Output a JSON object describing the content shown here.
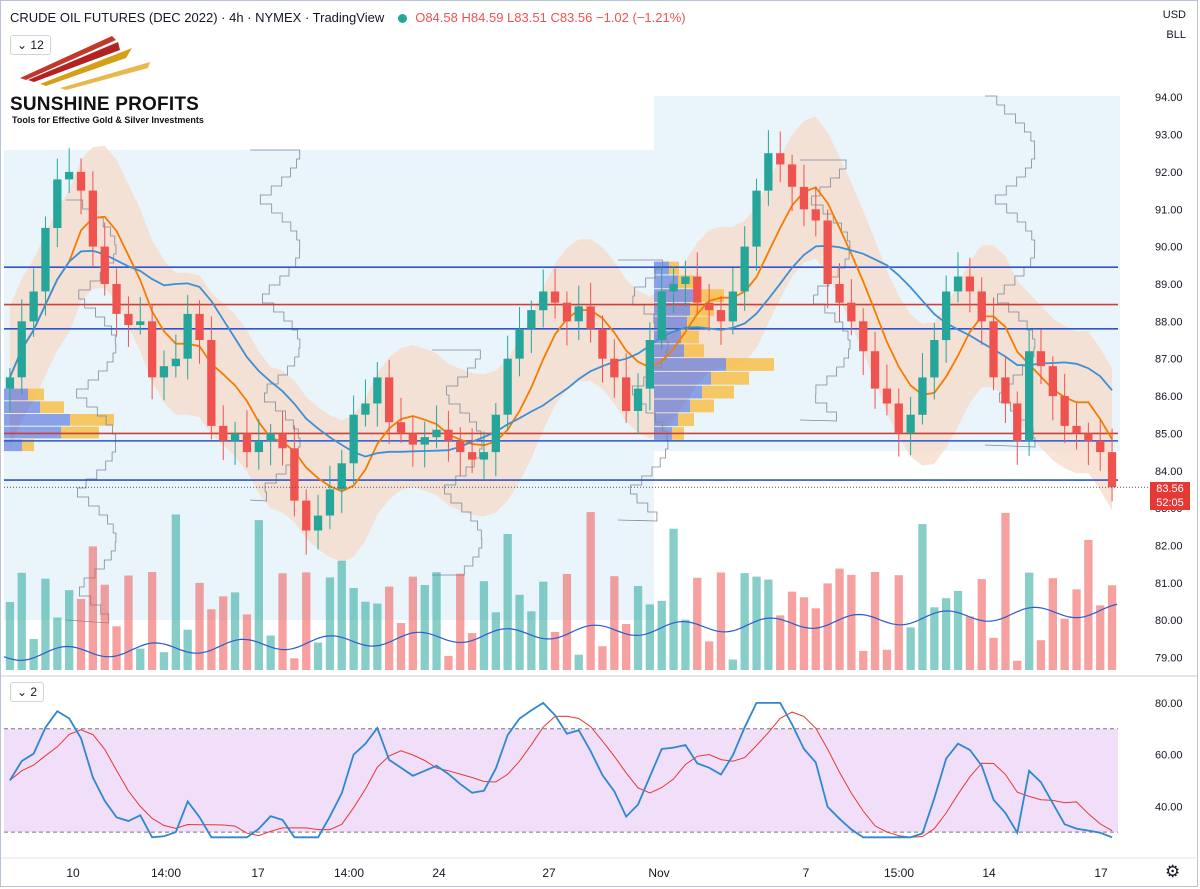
{
  "header": {
    "title": "CRUDE OIL FUTURES (DEC 2022) · 4h · NYMEX · TradingView",
    "open": "O84.58",
    "high": "H84.59",
    "low": "L83.51",
    "close": "C83.56",
    "change": "−1.02 (−1.21%)",
    "currency": "USD",
    "unit": "BLL"
  },
  "logo": {
    "name": "SUNSHINE PROFITS",
    "tagline": "Tools for Effective Gold & Silver Investments"
  },
  "pane_main": {
    "indicator_count": "12"
  },
  "pane_rsi": {
    "indicator_count": "2"
  },
  "last_price": {
    "value": "83.56",
    "countdown": "52:05"
  },
  "colors": {
    "bull": "#26a69a",
    "bear": "#ef5350",
    "ma_orange": "#f57c00",
    "ma_blue": "#3d8fd6",
    "band": "#f5d9c8",
    "rsi": "#2e87d0",
    "rsi_ma": "#e53935"
  },
  "chart_data": {
    "type": "candlestick",
    "x_ticks": [
      "10",
      "14:00",
      "17",
      "14:00",
      "24",
      "27",
      "Nov",
      "7",
      "15:00",
      "14",
      "17"
    ],
    "y_ticks": [
      "94.00",
      "93.00",
      "92.00",
      "91.00",
      "90.00",
      "89.00",
      "88.00",
      "87.00",
      "86.00",
      "85.00",
      "84.00",
      "83.00",
      "82.00",
      "81.00",
      "80.00",
      "79.00"
    ],
    "ylim": [
      78.8,
      94.3
    ],
    "horizontal_levels": [
      {
        "price": 89.45,
        "color": "#2f55c8"
      },
      {
        "price": 88.45,
        "color": "#c9413a"
      },
      {
        "price": 87.8,
        "color": "#2f55c8"
      },
      {
        "price": 85.0,
        "color": "#c9413a"
      },
      {
        "price": 84.8,
        "color": "#2f55c8"
      },
      {
        "price": 83.75,
        "color": "#2f55c8"
      }
    ],
    "candles_close_sample": [
      86.5,
      88.0,
      88.8,
      90.5,
      91.8,
      92.0,
      91.5,
      90.0,
      89.0,
      88.2,
      87.9,
      88.0,
      86.5,
      86.8,
      87.0,
      88.2,
      87.5,
      85.2,
      84.8,
      85.0,
      84.5,
      84.8,
      85.0,
      84.6,
      83.2,
      82.4,
      82.8,
      83.5,
      84.2,
      85.5,
      85.8,
      86.5,
      85.3,
      85.0,
      84.7,
      84.9,
      85.1,
      84.8,
      84.5,
      84.3,
      84.5,
      85.5,
      87.0,
      87.8,
      88.3,
      88.8,
      88.5,
      88.0,
      88.4,
      87.8,
      87.0,
      86.5,
      85.6,
      86.2,
      87.5,
      88.8,
      89.0,
      89.2,
      88.5,
      88.3,
      88.0,
      88.8,
      90.0,
      91.5,
      92.5,
      92.2,
      91.6,
      91.0,
      90.7,
      89.0,
      88.5,
      88.0,
      87.2,
      86.2,
      85.8,
      85.0,
      85.5,
      86.5,
      87.5,
      88.8,
      89.2,
      88.8,
      88.0,
      86.5,
      85.8,
      84.8,
      87.2,
      86.8,
      86.0,
      85.2,
      85.0,
      84.8,
      84.5,
      83.56
    ],
    "rsi": {
      "ylim": [
        25,
        85
      ],
      "y_ticks": [
        "80.00",
        "60.00",
        "40.00"
      ],
      "overbought": 70,
      "oversold": 30
    }
  }
}
